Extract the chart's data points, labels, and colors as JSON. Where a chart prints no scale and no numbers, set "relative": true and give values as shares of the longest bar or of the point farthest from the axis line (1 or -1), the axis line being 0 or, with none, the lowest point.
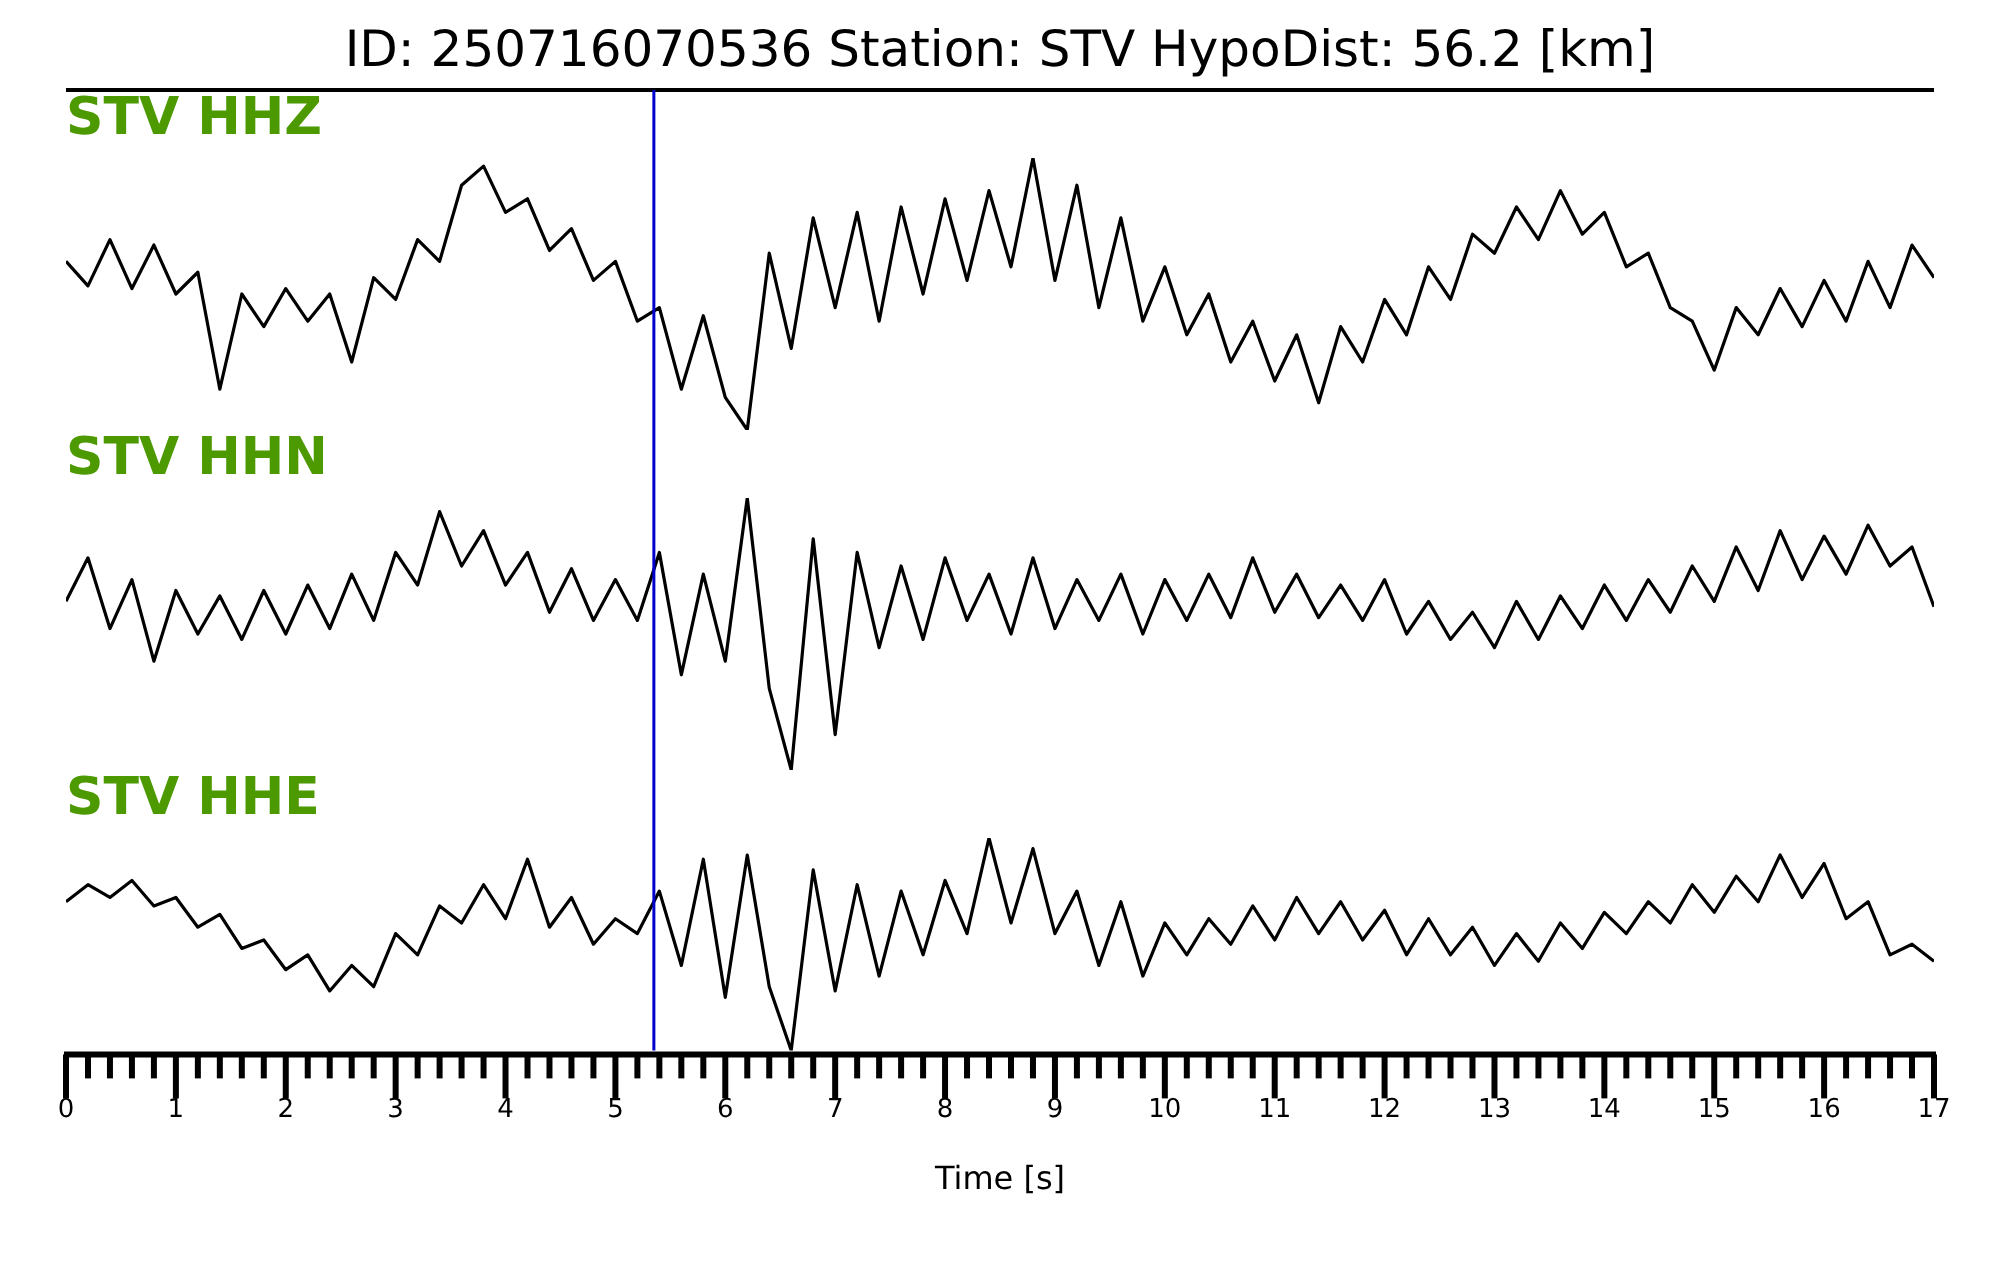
{
  "chart_data": [
    {
      "type": "line",
      "title": "ID: 250716070536   Station: STV   HypoDist:    56.2 [km]",
      "relative": true,
      "xlim": [
        0,
        17
      ],
      "tick_labels": false,
      "legend": false,
      "x": [
        0,
        0.2,
        0.4,
        0.6,
        0.8,
        1,
        1.2,
        1.4,
        1.6,
        1.8,
        2,
        2.2,
        2.4,
        2.6,
        2.8,
        3,
        3.2,
        3.4,
        3.6,
        3.8,
        4,
        4.2,
        4.4,
        4.6,
        4.8,
        5,
        5.2,
        5.4,
        5.6,
        5.8,
        6,
        6.2,
        6.4,
        6.6,
        6.8,
        7,
        7.2,
        7.4,
        7.6,
        7.8,
        8,
        8.2,
        8.4,
        8.6,
        8.8,
        9,
        9.2,
        9.4,
        9.6,
        9.8,
        10,
        10.2,
        10.4,
        10.6,
        10.8,
        11,
        11.2,
        11.4,
        11.6,
        11.8,
        12,
        12.2,
        12.4,
        12.6,
        12.8,
        13,
        13.2,
        13.4,
        13.6,
        13.8,
        14,
        14.2,
        14.4,
        14.6,
        14.8,
        15,
        15.2,
        15.4,
        15.6,
        15.8,
        16,
        16.2,
        16.4,
        16.6,
        16.8,
        17
      ],
      "series": [
        {
          "name": "STV HHZ",
          "color": "#000000",
          "values": [
            0.62,
            0.53,
            0.7,
            0.52,
            0.68,
            0.5,
            0.58,
            0.15,
            0.5,
            0.38,
            0.52,
            0.4,
            0.5,
            0.25,
            0.56,
            0.48,
            0.7,
            0.62,
            0.9,
            0.97,
            0.8,
            0.85,
            0.66,
            0.74,
            0.55,
            0.62,
            0.4,
            0.45,
            0.15,
            0.42,
            0.12,
            0.0,
            0.65,
            0.3,
            0.78,
            0.45,
            0.8,
            0.4,
            0.82,
            0.5,
            0.85,
            0.55,
            0.88,
            0.6,
            1.0,
            0.55,
            0.9,
            0.45,
            0.78,
            0.4,
            0.6,
            0.35,
            0.5,
            0.25,
            0.4,
            0.18,
            0.35,
            0.1,
            0.38,
            0.25,
            0.48,
            0.35,
            0.6,
            0.48,
            0.72,
            0.65,
            0.82,
            0.7,
            0.88,
            0.72,
            0.8,
            0.6,
            0.65,
            0.45,
            0.4,
            0.22,
            0.45,
            0.35,
            0.52,
            0.38,
            0.55,
            0.4,
            0.62,
            0.45,
            0.68,
            0.56
          ]
        }
      ],
      "ref_lines": [
        {
          "axis": "x",
          "value": 5.35,
          "color": "#0000cc"
        }
      ]
    },
    {
      "type": "line",
      "relative": true,
      "xlim": [
        0,
        17
      ],
      "tick_labels": false,
      "legend": false,
      "x": [
        0,
        0.2,
        0.4,
        0.6,
        0.8,
        1,
        1.2,
        1.4,
        1.6,
        1.8,
        2,
        2.2,
        2.4,
        2.6,
        2.8,
        3,
        3.2,
        3.4,
        3.6,
        3.8,
        4,
        4.2,
        4.4,
        4.6,
        4.8,
        5,
        5.2,
        5.4,
        5.6,
        5.8,
        6,
        6.2,
        6.4,
        6.6,
        6.8,
        7,
        7.2,
        7.4,
        7.6,
        7.8,
        8,
        8.2,
        8.4,
        8.6,
        8.8,
        9,
        9.2,
        9.4,
        9.6,
        9.8,
        10,
        10.2,
        10.4,
        10.6,
        10.8,
        11,
        11.2,
        11.4,
        11.6,
        11.8,
        12,
        12.2,
        12.4,
        12.6,
        12.8,
        13,
        13.2,
        13.4,
        13.6,
        13.8,
        14,
        14.2,
        14.4,
        14.6,
        14.8,
        15,
        15.2,
        15.4,
        15.6,
        15.8,
        16,
        16.2,
        16.4,
        16.6,
        16.8,
        17
      ],
      "series": [
        {
          "name": "STV HHN",
          "color": "#000000",
          "values": [
            0.62,
            0.78,
            0.52,
            0.7,
            0.4,
            0.66,
            0.5,
            0.64,
            0.48,
            0.66,
            0.5,
            0.68,
            0.52,
            0.72,
            0.55,
            0.8,
            0.68,
            0.95,
            0.75,
            0.88,
            0.68,
            0.8,
            0.58,
            0.74,
            0.55,
            0.7,
            0.55,
            0.8,
            0.35,
            0.72,
            0.4,
            1.0,
            0.3,
            0.0,
            0.85,
            0.13,
            0.8,
            0.45,
            0.75,
            0.48,
            0.78,
            0.55,
            0.72,
            0.5,
            0.78,
            0.52,
            0.7,
            0.55,
            0.72,
            0.5,
            0.7,
            0.55,
            0.72,
            0.56,
            0.78,
            0.58,
            0.72,
            0.56,
            0.68,
            0.55,
            0.7,
            0.5,
            0.62,
            0.48,
            0.58,
            0.45,
            0.62,
            0.48,
            0.64,
            0.52,
            0.68,
            0.55,
            0.7,
            0.58,
            0.75,
            0.62,
            0.82,
            0.66,
            0.88,
            0.7,
            0.86,
            0.72,
            0.9,
            0.75,
            0.82,
            0.6
          ]
        }
      ],
      "ref_lines": [
        {
          "axis": "x",
          "value": 5.35,
          "color": "#0000cc"
        }
      ]
    },
    {
      "type": "line",
      "xlabel": "Time [s]",
      "relative": true,
      "xlim": [
        0,
        17
      ],
      "tick_labels": "x",
      "legend": false,
      "xticks": [
        0,
        {
          "value": 0.2,
          "label": null
        },
        {
          "value": 0.4,
          "label": null
        },
        {
          "value": 0.6,
          "label": null
        },
        {
          "value": 0.8,
          "label": null
        },
        1,
        {
          "value": 1.2,
          "label": null
        },
        {
          "value": 1.4,
          "label": null
        },
        {
          "value": 1.6,
          "label": null
        },
        {
          "value": 1.8,
          "label": null
        },
        2,
        {
          "value": 2.2,
          "label": null
        },
        {
          "value": 2.4,
          "label": null
        },
        {
          "value": 2.6,
          "label": null
        },
        {
          "value": 2.8,
          "label": null
        },
        3,
        {
          "value": 3.2,
          "label": null
        },
        {
          "value": 3.4,
          "label": null
        },
        {
          "value": 3.6,
          "label": null
        },
        {
          "value": 3.8,
          "label": null
        },
        4,
        {
          "value": 4.2,
          "label": null
        },
        {
          "value": 4.4,
          "label": null
        },
        {
          "value": 4.6,
          "label": null
        },
        {
          "value": 4.8,
          "label": null
        },
        5,
        {
          "value": 5.2,
          "label": null
        },
        {
          "value": 5.4,
          "label": null
        },
        {
          "value": 5.6,
          "label": null
        },
        {
          "value": 5.8,
          "label": null
        },
        6,
        {
          "value": 6.2,
          "label": null
        },
        {
          "value": 6.4,
          "label": null
        },
        {
          "value": 6.6,
          "label": null
        },
        {
          "value": 6.8,
          "label": null
        },
        7,
        {
          "value": 7.2,
          "label": null
        },
        {
          "value": 7.4,
          "label": null
        },
        {
          "value": 7.6,
          "label": null
        },
        {
          "value": 7.8,
          "label": null
        },
        8,
        {
          "value": 8.2,
          "label": null
        },
        {
          "value": 8.4,
          "label": null
        },
        {
          "value": 8.6,
          "label": null
        },
        {
          "value": 8.8,
          "label": null
        },
        9,
        {
          "value": 9.2,
          "label": null
        },
        {
          "value": 9.4,
          "label": null
        },
        {
          "value": 9.6,
          "label": null
        },
        {
          "value": 9.8,
          "label": null
        },
        10,
        {
          "value": 10.2,
          "label": null
        },
        {
          "value": 10.4,
          "label": null
        },
        {
          "value": 10.6,
          "label": null
        },
        {
          "value": 10.8,
          "label": null
        },
        11,
        {
          "value": 11.2,
          "label": null
        },
        {
          "value": 11.4,
          "label": null
        },
        {
          "value": 11.6,
          "label": null
        },
        {
          "value": 11.8,
          "label": null
        },
        12,
        {
          "value": 12.2,
          "label": null
        },
        {
          "value": 12.4,
          "label": null
        },
        {
          "value": 12.6,
          "label": null
        },
        {
          "value": 12.8,
          "label": null
        },
        13,
        {
          "value": 13.2,
          "label": null
        },
        {
          "value": 13.4,
          "label": null
        },
        {
          "value": 13.6,
          "label": null
        },
        {
          "value": 13.8,
          "label": null
        },
        14,
        {
          "value": 14.2,
          "label": null
        },
        {
          "value": 14.4,
          "label": null
        },
        {
          "value": 14.6,
          "label": null
        },
        {
          "value": 14.8,
          "label": null
        },
        15,
        {
          "value": 15.2,
          "label": null
        },
        {
          "value": 15.4,
          "label": null
        },
        {
          "value": 15.6,
          "label": null
        },
        {
          "value": 15.8,
          "label": null
        },
        16,
        {
          "value": 16.2,
          "label": null
        },
        {
          "value": 16.4,
          "label": null
        },
        {
          "value": 16.6,
          "label": null
        },
        {
          "value": 16.8,
          "label": null
        },
        17
      ],
      "x": [
        0,
        0.2,
        0.4,
        0.6,
        0.8,
        1,
        1.2,
        1.4,
        1.6,
        1.8,
        2,
        2.2,
        2.4,
        2.6,
        2.8,
        3,
        3.2,
        3.4,
        3.6,
        3.8,
        4,
        4.2,
        4.4,
        4.6,
        4.8,
        5,
        5.2,
        5.4,
        5.6,
        5.8,
        6,
        6.2,
        6.4,
        6.6,
        6.8,
        7,
        7.2,
        7.4,
        7.6,
        7.8,
        8,
        8.2,
        8.4,
        8.6,
        8.8,
        9,
        9.2,
        9.4,
        9.6,
        9.8,
        10,
        10.2,
        10.4,
        10.6,
        10.8,
        11,
        11.2,
        11.4,
        11.6,
        11.8,
        12,
        12.2,
        12.4,
        12.6,
        12.8,
        13,
        13.2,
        13.4,
        13.6,
        13.8,
        14,
        14.2,
        14.4,
        14.6,
        14.8,
        15,
        15.2,
        15.4,
        15.6,
        15.8,
        16,
        16.2,
        16.4,
        16.6,
        16.8,
        17
      ],
      "series": [
        {
          "name": "STV HHE",
          "color": "#000000",
          "values": [
            0.7,
            0.78,
            0.72,
            0.8,
            0.68,
            0.72,
            0.58,
            0.64,
            0.48,
            0.52,
            0.38,
            0.45,
            0.28,
            0.4,
            0.3,
            0.55,
            0.45,
            0.68,
            0.6,
            0.78,
            0.62,
            0.9,
            0.58,
            0.72,
            0.5,
            0.62,
            0.55,
            0.75,
            0.4,
            0.9,
            0.25,
            0.92,
            0.3,
            0.0,
            0.85,
            0.28,
            0.78,
            0.35,
            0.75,
            0.45,
            0.8,
            0.55,
            1.0,
            0.6,
            0.95,
            0.55,
            0.75,
            0.4,
            0.7,
            0.35,
            0.6,
            0.45,
            0.62,
            0.5,
            0.68,
            0.52,
            0.72,
            0.55,
            0.7,
            0.52,
            0.66,
            0.45,
            0.62,
            0.45,
            0.58,
            0.4,
            0.55,
            0.42,
            0.6,
            0.48,
            0.65,
            0.55,
            0.7,
            0.6,
            0.78,
            0.65,
            0.82,
            0.7,
            0.92,
            0.72,
            0.88,
            0.62,
            0.7,
            0.45,
            0.5,
            0.42
          ]
        }
      ],
      "ref_lines": [
        {
          "axis": "x",
          "value": 5.35,
          "color": "#0000cc"
        }
      ]
    }
  ]
}
